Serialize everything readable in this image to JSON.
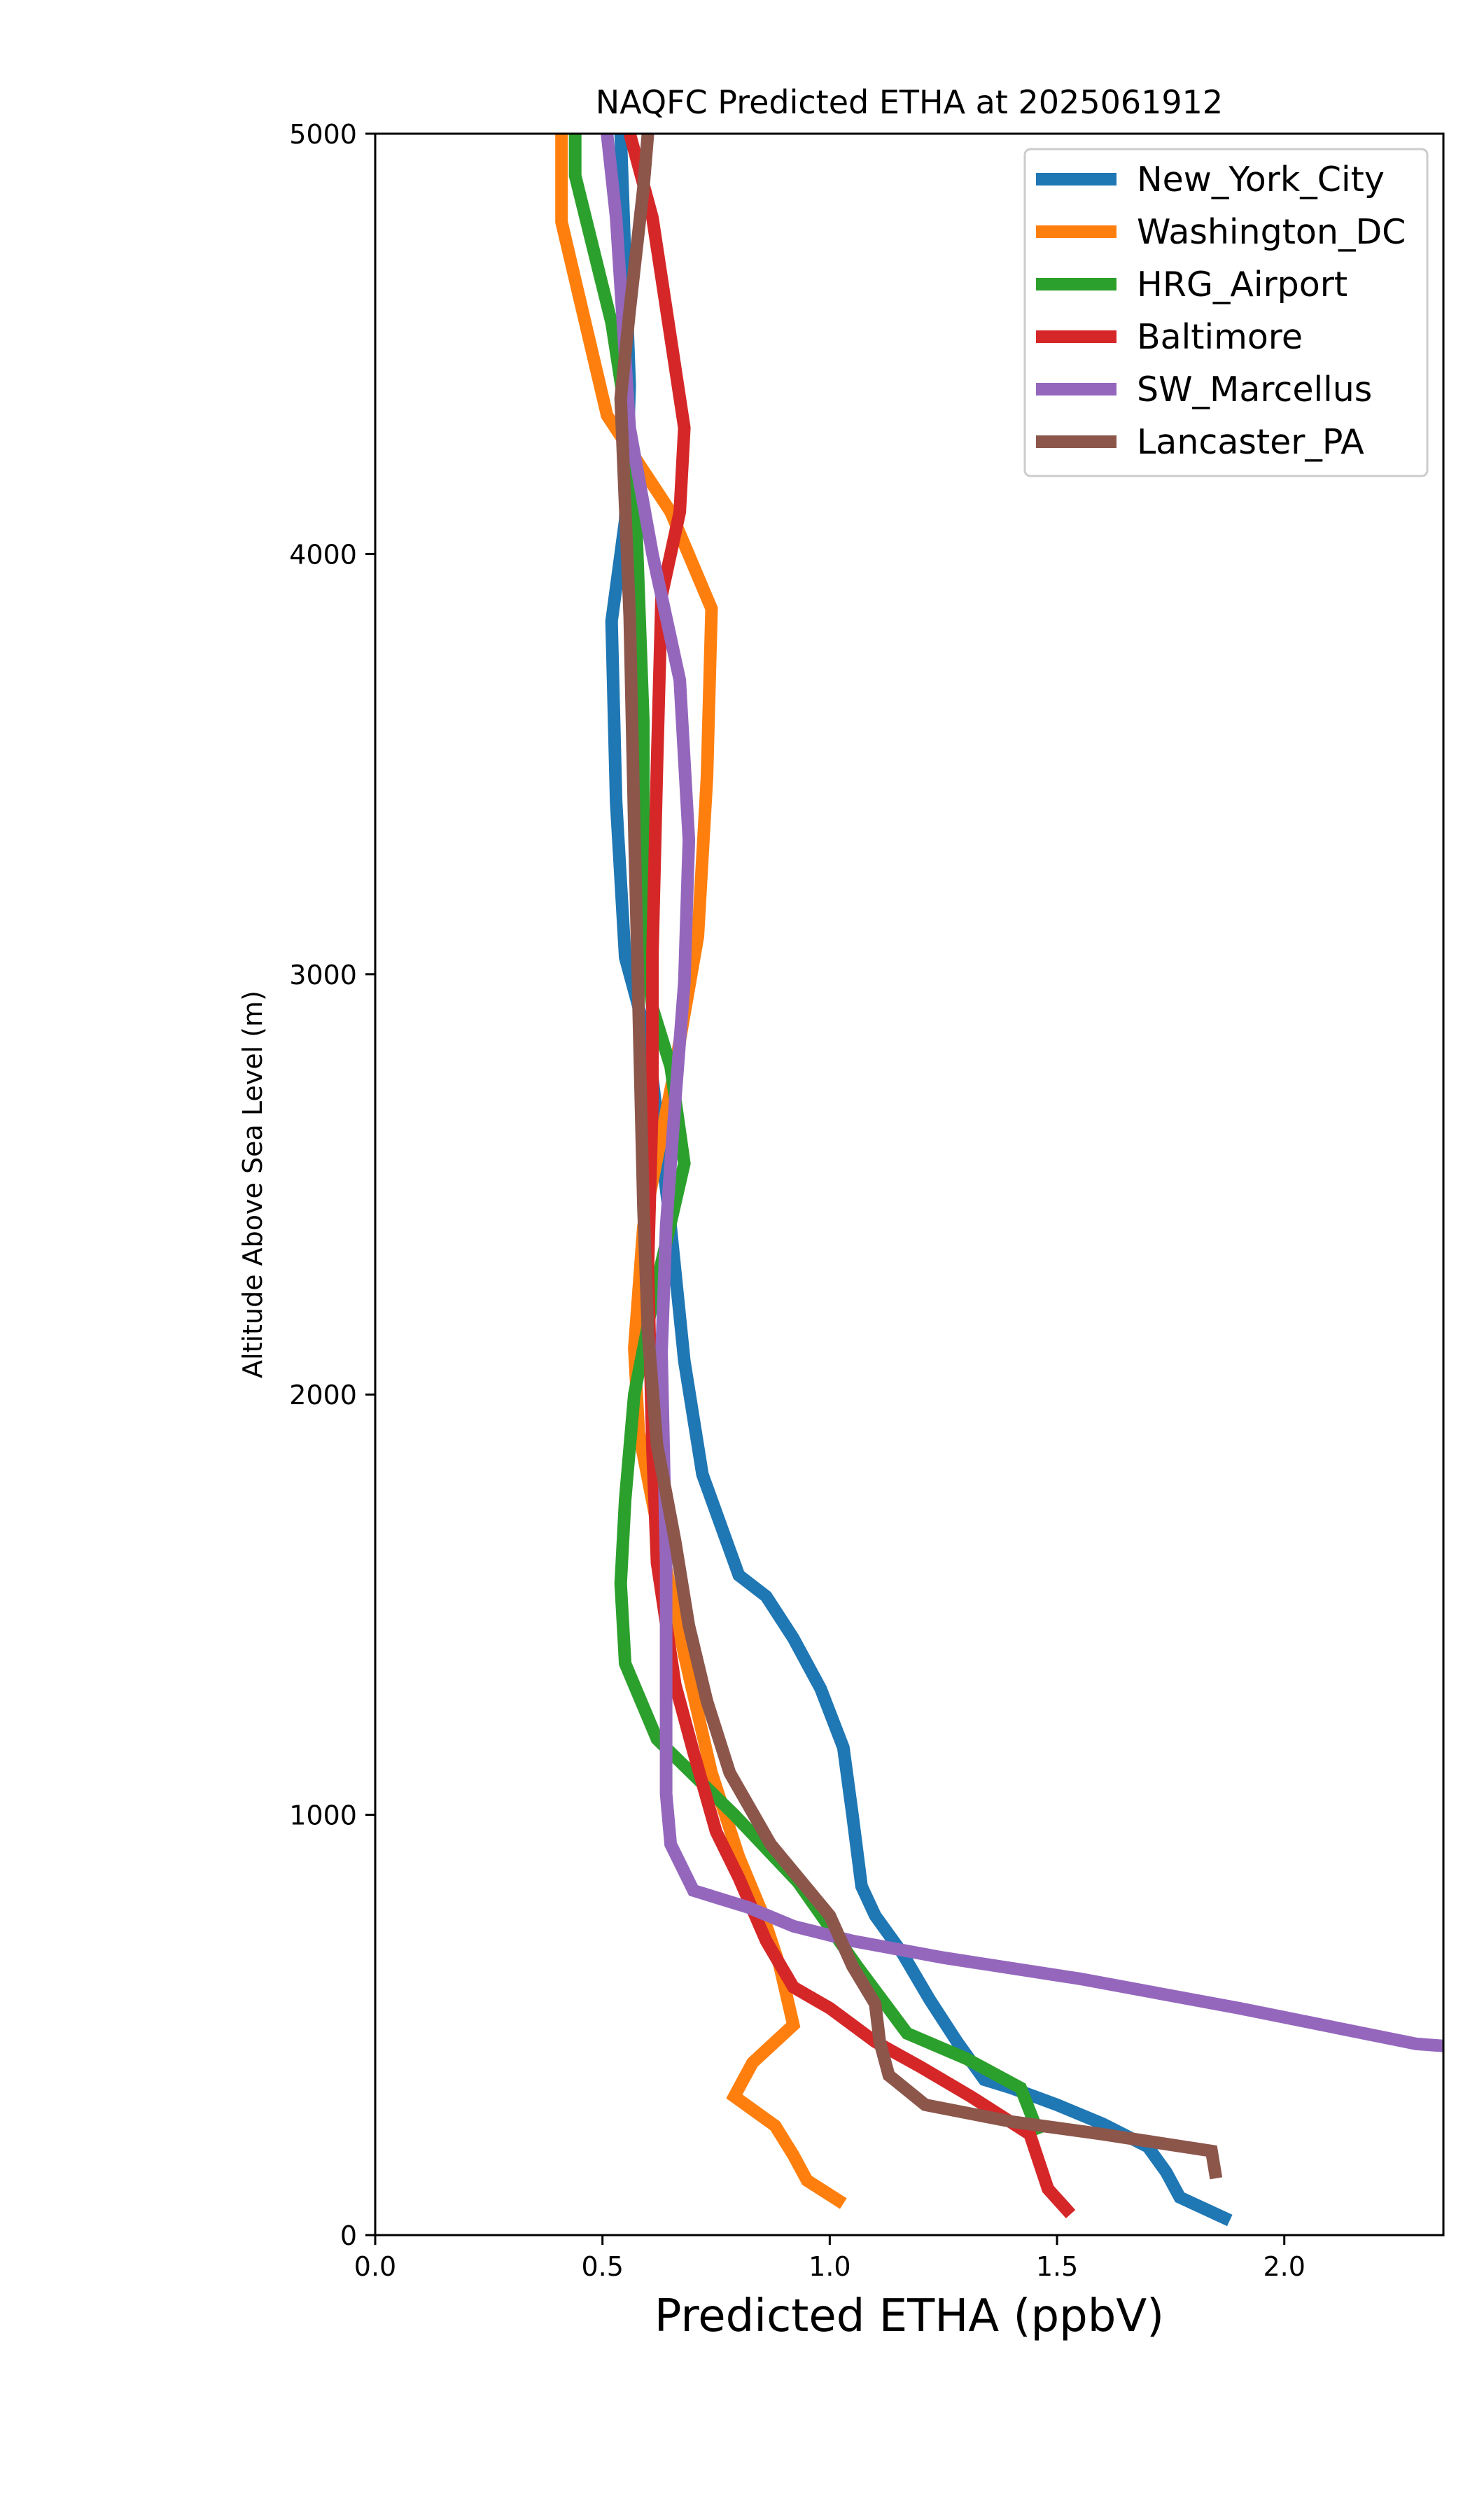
{
  "chart_data": {
    "type": "line",
    "title": "NAQFC Predicted ETHA at 2025061912",
    "xlabel": "Predicted ETHA (ppbV)",
    "ylabel": "Altitude Above Sea Level (m)",
    "xlim": [
      0.0,
      2.35
    ],
    "ylim": [
      0,
      5000
    ],
    "xticks": [
      "0.0",
      "0.5",
      "1.0",
      "1.5",
      "2.0"
    ],
    "xtick_values": [
      0.0,
      0.5,
      1.0,
      1.5,
      2.0
    ],
    "yticks": [
      "0",
      "1000",
      "2000",
      "3000",
      "4000",
      "5000"
    ],
    "ytick_values": [
      0,
      1000,
      2000,
      3000,
      4000,
      5000
    ],
    "grid": false,
    "legend_position": "top-right",
    "series": [
      {
        "name": "New_York_City",
        "color": "#1f77b4",
        "points": [
          [
            1.88,
            35
          ],
          [
            1.77,
            90
          ],
          [
            1.74,
            150
          ],
          [
            1.7,
            210
          ],
          [
            1.6,
            265
          ],
          [
            1.5,
            310
          ],
          [
            1.4,
            350
          ],
          [
            1.34,
            370
          ],
          [
            1.28,
            460
          ],
          [
            1.22,
            560
          ],
          [
            1.16,
            670
          ],
          [
            1.1,
            760
          ],
          [
            1.07,
            830
          ],
          [
            1.05,
            1000
          ],
          [
            1.03,
            1160
          ],
          [
            0.98,
            1300
          ],
          [
            0.92,
            1420
          ],
          [
            0.86,
            1520
          ],
          [
            0.8,
            1570
          ],
          [
            0.72,
            1810
          ],
          [
            0.68,
            2080
          ],
          [
            0.65,
            2400
          ],
          [
            0.6,
            2840
          ],
          [
            0.55,
            3040
          ],
          [
            0.53,
            3410
          ],
          [
            0.52,
            3840
          ],
          [
            0.55,
            4080
          ],
          [
            0.56,
            4400
          ],
          [
            0.55,
            4700
          ],
          [
            0.54,
            5000
          ]
        ]
      },
      {
        "name": "Washington_DC",
        "color": "#ff7f0e",
        "points": [
          [
            1.03,
            75
          ],
          [
            0.95,
            130
          ],
          [
            0.92,
            190
          ],
          [
            0.88,
            260
          ],
          [
            0.79,
            330
          ],
          [
            0.83,
            410
          ],
          [
            0.92,
            500
          ],
          [
            0.89,
            640
          ],
          [
            0.85,
            770
          ],
          [
            0.8,
            900
          ],
          [
            0.74,
            1100
          ],
          [
            0.68,
            1380
          ],
          [
            0.62,
            1690
          ],
          [
            0.58,
            1910
          ],
          [
            0.57,
            2110
          ],
          [
            0.59,
            2400
          ],
          [
            0.66,
            2780
          ],
          [
            0.71,
            3090
          ],
          [
            0.73,
            3470
          ],
          [
            0.74,
            3870
          ],
          [
            0.65,
            4100
          ],
          [
            0.51,
            4330
          ],
          [
            0.41,
            4790
          ],
          [
            0.41,
            5000
          ]
        ]
      },
      {
        "name": "HRG_Airport",
        "color": "#2ca02c",
        "points": [
          [
            1.46,
            240
          ],
          [
            1.42,
            350
          ],
          [
            1.3,
            420
          ],
          [
            1.17,
            480
          ],
          [
            1.06,
            640
          ],
          [
            0.93,
            840
          ],
          [
            0.79,
            1000
          ],
          [
            0.62,
            1180
          ],
          [
            0.55,
            1360
          ],
          [
            0.54,
            1550
          ],
          [
            0.55,
            1750
          ],
          [
            0.57,
            2000
          ],
          [
            0.61,
            2220
          ],
          [
            0.68,
            2550
          ],
          [
            0.65,
            2780
          ],
          [
            0.61,
            2920
          ],
          [
            0.59,
            3100
          ],
          [
            0.59,
            3600
          ],
          [
            0.58,
            3900
          ],
          [
            0.57,
            4200
          ],
          [
            0.52,
            4550
          ],
          [
            0.44,
            4900
          ],
          [
            0.44,
            5000
          ]
        ]
      },
      {
        "name": "Baltimore",
        "color": "#d62728",
        "points": [
          [
            1.53,
            50
          ],
          [
            1.48,
            110
          ],
          [
            1.44,
            240
          ],
          [
            1.31,
            330
          ],
          [
            1.2,
            400
          ],
          [
            1.1,
            460
          ],
          [
            1.0,
            540
          ],
          [
            0.92,
            590
          ],
          [
            0.86,
            700
          ],
          [
            0.8,
            850
          ],
          [
            0.75,
            960
          ],
          [
            0.7,
            1150
          ],
          [
            0.66,
            1310
          ],
          [
            0.62,
            1600
          ],
          [
            0.61,
            1870
          ],
          [
            0.6,
            2300
          ],
          [
            0.61,
            2700
          ],
          [
            0.61,
            3050
          ],
          [
            0.62,
            3500
          ],
          [
            0.63,
            3900
          ],
          [
            0.67,
            4100
          ],
          [
            0.68,
            4300
          ],
          [
            0.61,
            4800
          ],
          [
            0.56,
            5000
          ]
        ]
      },
      {
        "name": "SW_Marcellus",
        "color": "#9467bd",
        "points": [
          [
            2.35,
            450
          ],
          [
            2.29,
            455
          ],
          [
            1.9,
            540
          ],
          [
            1.55,
            610
          ],
          [
            1.25,
            660
          ],
          [
            1.05,
            700
          ],
          [
            0.92,
            735
          ],
          [
            0.82,
            780
          ],
          [
            0.7,
            820
          ],
          [
            0.65,
            930
          ],
          [
            0.64,
            1050
          ],
          [
            0.64,
            1340
          ],
          [
            0.64,
            1600
          ],
          [
            0.63,
            2100
          ],
          [
            0.64,
            2400
          ],
          [
            0.66,
            2700
          ],
          [
            0.68,
            2980
          ],
          [
            0.69,
            3320
          ],
          [
            0.67,
            3700
          ],
          [
            0.61,
            4000
          ],
          [
            0.56,
            4300
          ],
          [
            0.53,
            4800
          ],
          [
            0.51,
            5000
          ]
        ]
      },
      {
        "name": "Lancaster_PA",
        "color": "#8c564b",
        "points": [
          [
            1.85,
            135
          ],
          [
            1.84,
            200
          ],
          [
            1.6,
            240
          ],
          [
            1.4,
            270
          ],
          [
            1.21,
            310
          ],
          [
            1.13,
            380
          ],
          [
            1.11,
            460
          ],
          [
            1.1,
            550
          ],
          [
            1.05,
            640
          ],
          [
            1.0,
            760
          ],
          [
            0.87,
            930
          ],
          [
            0.78,
            1100
          ],
          [
            0.73,
            1270
          ],
          [
            0.69,
            1450
          ],
          [
            0.66,
            1650
          ],
          [
            0.62,
            1880
          ],
          [
            0.6,
            2150
          ],
          [
            0.59,
            2450
          ],
          [
            0.58,
            2900
          ],
          [
            0.57,
            3350
          ],
          [
            0.56,
            3850
          ],
          [
            0.54,
            4370
          ],
          [
            0.56,
            4580
          ],
          [
            0.59,
            4870
          ],
          [
            0.6,
            5000
          ]
        ]
      }
    ]
  }
}
